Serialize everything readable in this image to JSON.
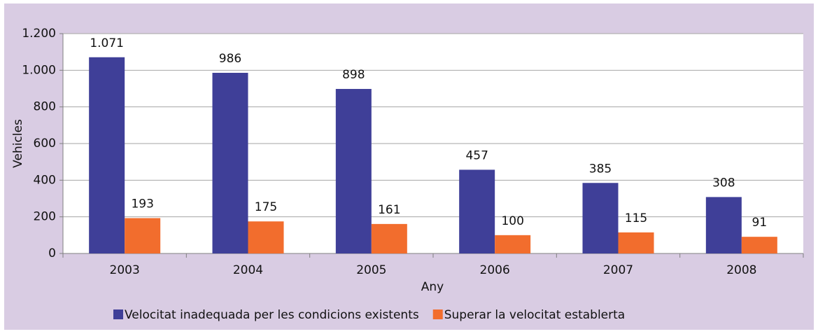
{
  "chart_data": {
    "type": "bar",
    "categories": [
      "2003",
      "2004",
      "2005",
      "2006",
      "2007",
      "2008"
    ],
    "series": [
      {
        "name": "Velocitat inadequada per les condicions existents",
        "color": "#3f3f98",
        "values": [
          1071,
          986,
          898,
          457,
          385,
          308
        ],
        "value_labels": [
          "1.071",
          "986",
          "898",
          "457",
          "385",
          "308"
        ]
      },
      {
        "name": "Superar la velocitat establerta",
        "color": "#f26d2d",
        "values": [
          193,
          175,
          161,
          100,
          115,
          91
        ]
      }
    ],
    "xlabel": "Any",
    "ylabel": "Vehicles",
    "ylim": [
      0,
      1200
    ],
    "yticks": [
      0,
      200,
      400,
      600,
      800,
      {
        "value": 1000,
        "label": "1.000"
      },
      {
        "value": 1200,
        "label": "1.200"
      }
    ],
    "grid": true,
    "legend": "bottom"
  }
}
